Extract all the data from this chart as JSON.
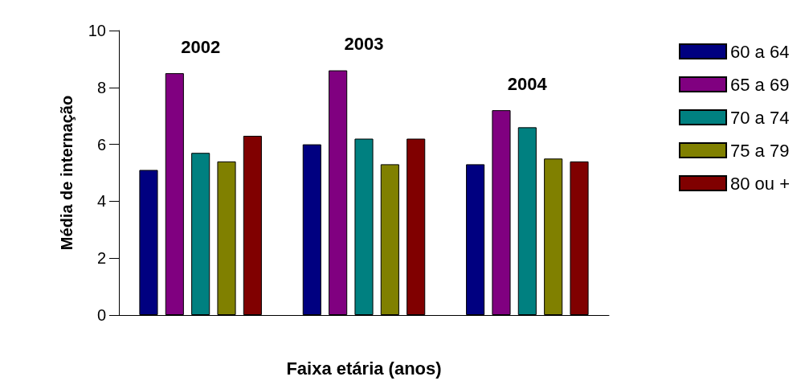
{
  "chart_data": {
    "type": "bar",
    "xlabel": "Faixa etária (anos)",
    "ylabel": "Média de internação",
    "categories": [
      "2002",
      "2003",
      "2004"
    ],
    "series": [
      {
        "name": "60 a 64",
        "color": "#000080",
        "values": [
          5.1,
          6.0,
          5.3
        ]
      },
      {
        "name": "65 a 69",
        "color": "#800080",
        "values": [
          8.5,
          8.6,
          7.2
        ]
      },
      {
        "name": "70 a 74",
        "color": "#008080",
        "values": [
          5.7,
          6.2,
          6.6
        ]
      },
      {
        "name": "75 a 79",
        "color": "#808000",
        "values": [
          5.4,
          5.3,
          5.5
        ]
      },
      {
        "name": "80 ou +",
        "color": "#800000",
        "values": [
          6.3,
          6.2,
          5.4
        ]
      }
    ],
    "ylim": [
      0,
      10
    ],
    "yticks": [
      0,
      2,
      4,
      6,
      8,
      10
    ],
    "grid": false,
    "legend": "right"
  }
}
